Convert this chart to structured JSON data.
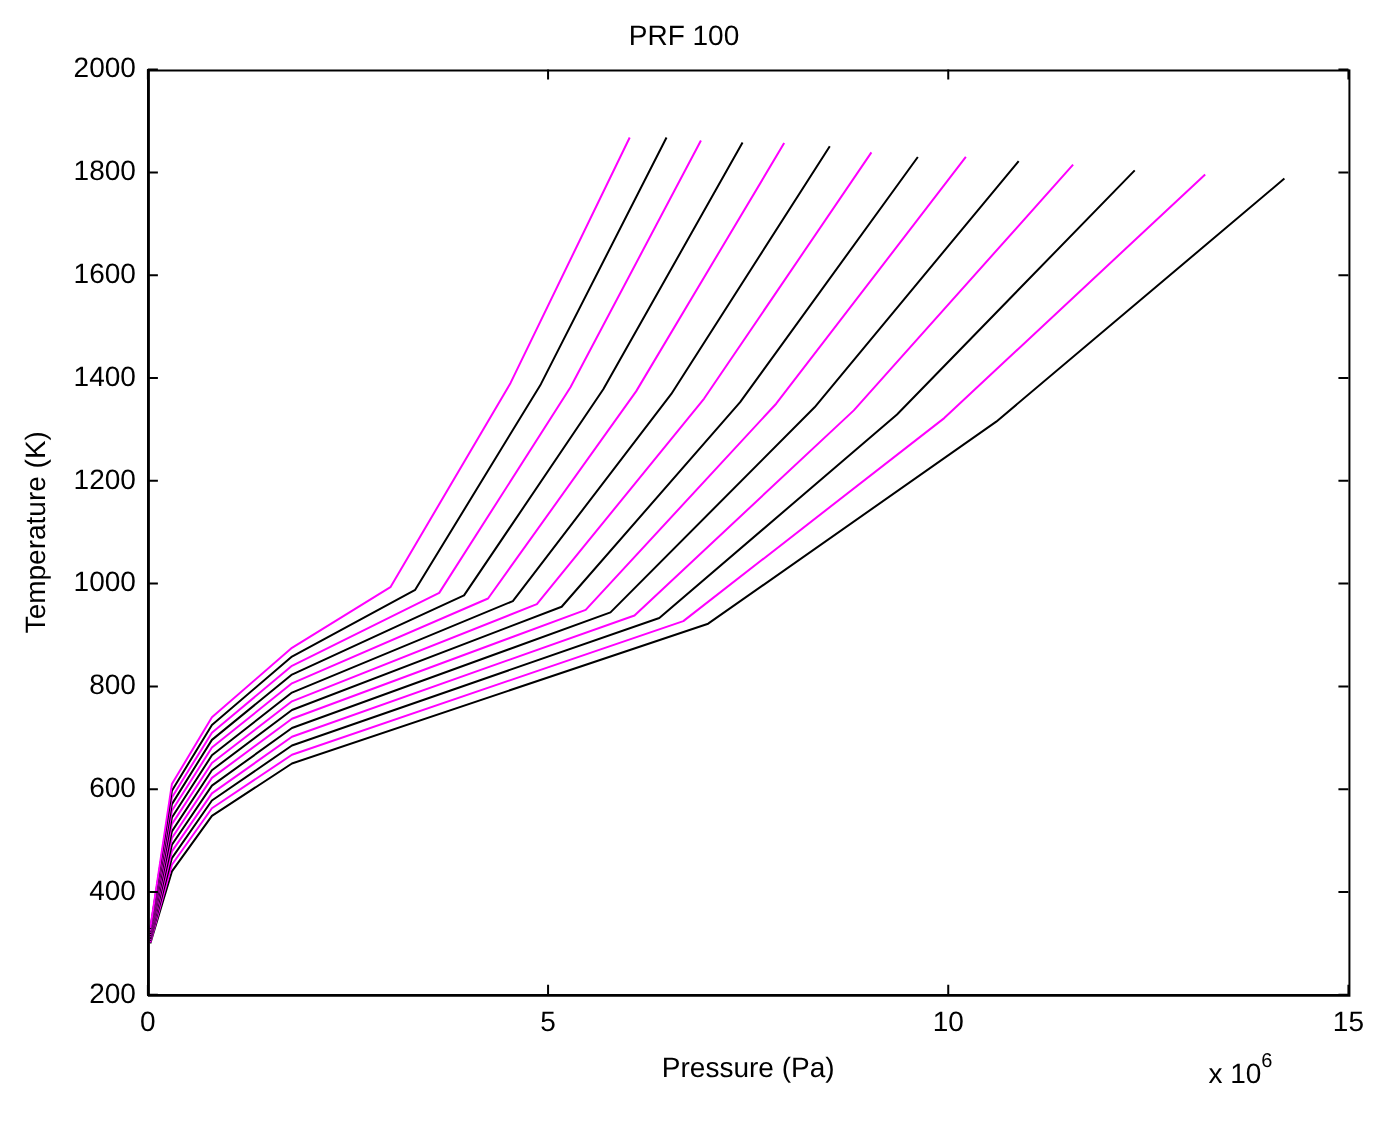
{
  "chart_data": {
    "type": "line",
    "title": "PRF 100",
    "xlabel": "Pressure (Pa)",
    "ylabel": "Temperature (K)",
    "annotations": [
      "x 10$^{6}$"
    ],
    "xlim": [
      0,
      15
    ],
    "xticks": [
      0,
      5,
      10,
      15
    ],
    "ylim": [
      200,
      2000
    ],
    "yticks": [
      200,
      400,
      600,
      800,
      1000,
      1200,
      1400,
      1600,
      1800,
      2000
    ],
    "grid": false,
    "legend": false,
    "marker": "none",
    "line_style": "solid",
    "series": [
      {
        "color": "#ff00ff",
        "x": [
          0.03,
          0.3,
          0.8,
          1.8,
          3.03,
          4.53,
          6.02
        ],
        "values": [
          330,
          610,
          740,
          875,
          993,
          1390,
          1868
        ]
      },
      {
        "color": "#000000",
        "x": [
          0.03,
          0.3,
          0.8,
          1.8,
          3.34,
          4.91,
          6.48
        ],
        "values": [
          328,
          597,
          725,
          858,
          988,
          1388,
          1868
        ]
      },
      {
        "color": "#ff00ff",
        "x": [
          0.03,
          0.3,
          0.8,
          1.8,
          3.64,
          5.28,
          6.91
        ],
        "values": [
          325,
          584,
          710,
          840,
          982,
          1382,
          1862
        ]
      },
      {
        "color": "#000000",
        "x": [
          0.03,
          0.3,
          0.8,
          1.8,
          3.95,
          5.69,
          7.43
        ],
        "values": [
          323,
          571,
          696,
          823,
          977,
          1378,
          1858
        ]
      },
      {
        "color": "#ff00ff",
        "x": [
          0.03,
          0.3,
          0.8,
          1.8,
          4.25,
          6.1,
          7.95
        ],
        "values": [
          321,
          558,
          681,
          806,
          971,
          1374,
          1857
        ]
      },
      {
        "color": "#000000",
        "x": [
          0.03,
          0.3,
          0.8,
          1.8,
          4.56,
          6.54,
          8.52
        ],
        "values": [
          318,
          545,
          666,
          788,
          966,
          1369,
          1851
        ]
      },
      {
        "color": "#ff00ff",
        "x": [
          0.03,
          0.3,
          0.8,
          1.8,
          4.86,
          6.95,
          9.04
        ],
        "values": [
          316,
          532,
          651,
          771,
          960,
          1360,
          1839
        ]
      },
      {
        "color": "#000000",
        "x": [
          0.03,
          0.3,
          0.8,
          1.8,
          5.17,
          7.4,
          9.62
        ],
        "values": [
          314,
          518,
          637,
          754,
          955,
          1353,
          1830
        ]
      },
      {
        "color": "#ff00ff",
        "x": [
          0.03,
          0.3,
          0.8,
          1.8,
          5.47,
          7.85,
          10.22
        ],
        "values": [
          312,
          505,
          622,
          737,
          949,
          1350,
          1830
        ]
      },
      {
        "color": "#000000",
        "x": [
          0.03,
          0.3,
          0.8,
          1.8,
          5.78,
          8.33,
          10.88
        ],
        "values": [
          309,
          492,
          607,
          719,
          944,
          1343,
          1822
        ]
      },
      {
        "color": "#ff00ff",
        "x": [
          0.03,
          0.3,
          0.8,
          1.8,
          6.08,
          8.82,
          11.56
        ],
        "values": [
          307,
          479,
          592,
          702,
          938,
          1337,
          1815
        ]
      },
      {
        "color": "#000000",
        "x": [
          0.03,
          0.3,
          0.8,
          1.8,
          6.39,
          9.36,
          12.33
        ],
        "values": [
          305,
          466,
          578,
          685,
          933,
          1329,
          1804
        ]
      },
      {
        "color": "#ff00ff",
        "x": [
          0.03,
          0.3,
          0.8,
          1.8,
          6.69,
          9.95,
          13.21
        ],
        "values": [
          302,
          453,
          563,
          667,
          927,
          1322,
          1796
        ]
      },
      {
        "color": "#000000",
        "x": [
          0.03,
          0.3,
          0.8,
          1.8,
          7.0,
          10.6,
          14.2
        ],
        "values": [
          300,
          440,
          548,
          650,
          922,
          1315,
          1788
        ]
      }
    ]
  }
}
